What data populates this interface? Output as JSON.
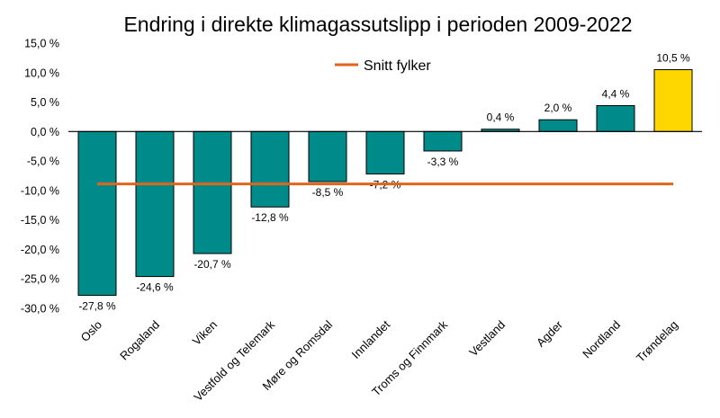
{
  "chart_data": {
    "type": "bar",
    "title": "Endring i direkte klimagassutslipp i perioden 2009-2022",
    "xlabel": "",
    "ylabel": "",
    "ylim": [
      -30,
      15
    ],
    "yticks": [
      15,
      10,
      5,
      0,
      -5,
      -10,
      -15,
      -20,
      -25,
      -30
    ],
    "ytick_labels": [
      "15,0 %",
      "10,0 %",
      "5,0 %",
      "0,0 %",
      "-5,0 %",
      "-10,0 %",
      "-15,0 %",
      "-20,0 %",
      "-25,0 %",
      "-30,0 %"
    ],
    "categories": [
      "Oslo",
      "Rogaland",
      "Viken",
      "Vestfold og Telemark",
      "Møre og Romsdal",
      "Innlandet",
      "Troms og Finnmark",
      "Vestland",
      "Agder",
      "Nordland",
      "Trøndelag"
    ],
    "values": [
      -27.8,
      -24.6,
      -20.7,
      -12.8,
      -8.5,
      -7.2,
      -3.3,
      0.4,
      2.0,
      4.4,
      10.5
    ],
    "data_labels": [
      "-27,8 %",
      "-24,6 %",
      "-20,7 %",
      "-12,8 %",
      "-8,5 %",
      "-7,2 %",
      "-3,3 %",
      "0,4 %",
      "2,0 %",
      "4,4 %",
      "10,5 %"
    ],
    "bar_colors": [
      "#008b8b",
      "#008b8b",
      "#008b8b",
      "#008b8b",
      "#008b8b",
      "#008b8b",
      "#008b8b",
      "#008b8b",
      "#008b8b",
      "#008b8b",
      "#ffd700"
    ],
    "average_line": {
      "name": "Snitt fylker",
      "value": -8.9,
      "color": "#e0641a"
    },
    "legend": {
      "position": "top-center",
      "entries": [
        "Snitt fylker"
      ]
    },
    "grid": false
  }
}
